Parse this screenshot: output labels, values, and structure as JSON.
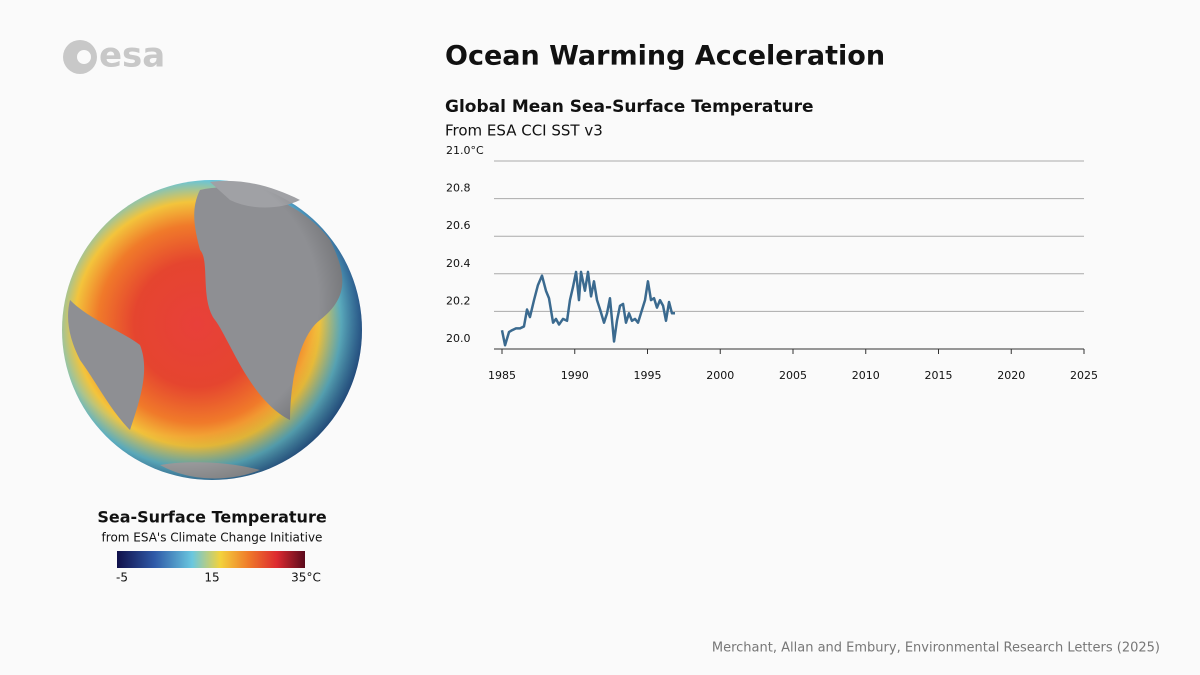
{
  "logo": "esa",
  "header": {
    "title": "Ocean Warming Acceleration"
  },
  "globe_legend": {
    "title": "Sea-Surface Temperature",
    "subtitle": "from ESA's Climate Change Initiative",
    "labels": [
      "-5",
      "15",
      "35°C"
    ]
  },
  "credit": "Merchant, Allan and Embury, Environmental Research Letters (2025)",
  "chart_data": {
    "type": "line",
    "title": "Global Mean Sea-Surface Temperature",
    "subtitle": "From ESA CCI SST v3",
    "color": "#3b6a8f",
    "x": [
      1985.0,
      1985.21,
      1985.48,
      1985.69,
      1985.96,
      1986.24,
      1986.51,
      1986.72,
      1986.92,
      1987.2,
      1987.47,
      1987.75,
      1988.02,
      1988.23,
      1988.51,
      1988.71,
      1988.92,
      1989.19,
      1989.47,
      1989.67,
      1989.88,
      1990.09,
      1990.29,
      1990.43,
      1990.7,
      1990.91,
      1991.12,
      1991.32,
      1991.53,
      1991.74,
      1992.01,
      1992.22,
      1992.42,
      1992.7,
      1992.9,
      1993.11,
      1993.32,
      1993.52,
      1993.73,
      1993.93,
      1994.14,
      1994.35,
      1994.55,
      1994.83,
      1995.03,
      1995.24,
      1995.45,
      1995.65,
      1995.86,
      1996.07,
      1996.27,
      1996.48,
      1996.68,
      1996.89
    ],
    "values": [
      20.1,
      20.02,
      20.09,
      20.1,
      20.11,
      20.11,
      20.12,
      20.21,
      20.17,
      20.26,
      20.34,
      20.39,
      20.31,
      20.27,
      20.14,
      20.16,
      20.13,
      20.16,
      20.15,
      20.26,
      20.33,
      20.41,
      20.26,
      20.41,
      20.31,
      20.41,
      20.28,
      20.36,
      20.26,
      20.21,
      20.14,
      20.19,
      20.27,
      20.04,
      20.15,
      20.23,
      20.24,
      20.14,
      20.19,
      20.15,
      20.16,
      20.14,
      20.19,
      20.26,
      20.36,
      20.26,
      20.27,
      20.22,
      20.26,
      20.23,
      20.15,
      20.25,
      20.19,
      20.19
    ],
    "xlim": [
      1984.45,
      2025
    ],
    "xticks": [
      1985,
      1990,
      1995,
      2000,
      2005,
      2010,
      2015,
      2020,
      2025
    ],
    "ylim": [
      20.0,
      21.0
    ],
    "yticks": [
      {
        "value": 20.0,
        "label": "20.0"
      },
      20.2,
      20.4,
      20.6,
      20.8,
      {
        "value": 21.0,
        "label": "21.0°C"
      }
    ],
    "grid": true
  }
}
